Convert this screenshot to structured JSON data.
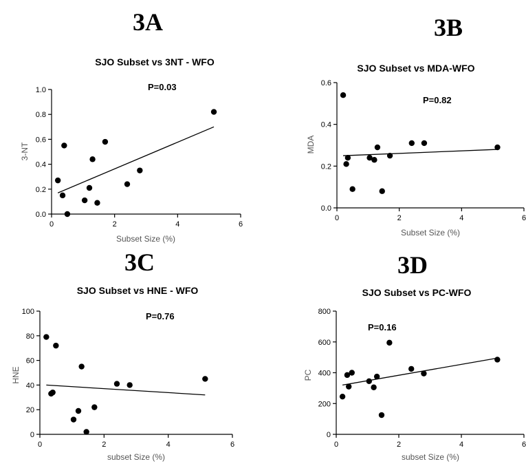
{
  "chart_data": [
    {
      "type": "scatter",
      "panel": "3A",
      "title": "SJO Subset vs 3NT - WFO",
      "annotation": "P=0.03",
      "xlabel": "Subset Size (%)",
      "ylabel": "3-NT",
      "xlim": [
        0,
        6
      ],
      "ylim": [
        0,
        1.0
      ],
      "xticks": [
        "0",
        "2",
        "4",
        "6"
      ],
      "yticks": [
        "0.0",
        "0.2",
        "0.4",
        "0.6",
        "0.8",
        "1.0"
      ],
      "points": [
        [
          0.2,
          0.27
        ],
        [
          0.35,
          0.15
        ],
        [
          0.4,
          0.55
        ],
        [
          0.5,
          0.0
        ],
        [
          1.05,
          0.11
        ],
        [
          1.2,
          0.21
        ],
        [
          1.3,
          0.44
        ],
        [
          1.45,
          0.09
        ],
        [
          1.7,
          0.58
        ],
        [
          2.4,
          0.24
        ],
        [
          2.8,
          0.35
        ],
        [
          5.15,
          0.82
        ]
      ],
      "fit_line": [
        [
          0.2,
          0.17
        ],
        [
          5.15,
          0.7
        ]
      ]
    },
    {
      "type": "scatter",
      "panel": "3B",
      "title": "SJO Subset vs MDA-WFO",
      "annotation": "P=0.82",
      "xlabel": "Subset Size (%)",
      "ylabel": "MDA",
      "xlim": [
        0,
        6
      ],
      "ylim": [
        0,
        0.6
      ],
      "xticks": [
        "0",
        "2",
        "4",
        "6"
      ],
      "yticks": [
        "0.0",
        "0.2",
        "0.4",
        "0.6"
      ],
      "points": [
        [
          0.2,
          0.54
        ],
        [
          0.3,
          0.21
        ],
        [
          0.35,
          0.24
        ],
        [
          0.5,
          0.09
        ],
        [
          1.05,
          0.24
        ],
        [
          1.2,
          0.23
        ],
        [
          1.3,
          0.29
        ],
        [
          1.45,
          0.08
        ],
        [
          1.7,
          0.25
        ],
        [
          2.4,
          0.31
        ],
        [
          2.8,
          0.31
        ],
        [
          5.15,
          0.29
        ]
      ],
      "fit_line": [
        [
          0.2,
          0.25
        ],
        [
          5.15,
          0.28
        ]
      ]
    },
    {
      "type": "scatter",
      "panel": "3C",
      "title": "SJO Subset vs HNE - WFO",
      "annotation": "P=0.76",
      "xlabel": "subset Size (%)",
      "ylabel": "HNE",
      "xlim": [
        0,
        6
      ],
      "ylim": [
        0,
        100
      ],
      "xticks": [
        "0",
        "2",
        "4",
        "6"
      ],
      "yticks": [
        "0",
        "20",
        "40",
        "60",
        "80",
        "100"
      ],
      "points": [
        [
          0.2,
          79
        ],
        [
          0.35,
          33
        ],
        [
          0.4,
          34
        ],
        [
          0.5,
          72
        ],
        [
          1.05,
          12
        ],
        [
          1.2,
          19
        ],
        [
          1.3,
          55
        ],
        [
          1.45,
          2
        ],
        [
          1.7,
          22
        ],
        [
          2.4,
          41
        ],
        [
          2.8,
          40
        ],
        [
          5.15,
          45
        ]
      ],
      "fit_line": [
        [
          0.2,
          40
        ],
        [
          5.15,
          32
        ]
      ]
    },
    {
      "type": "scatter",
      "panel": "3D",
      "title": "SJO Subset vs PC-WFO",
      "annotation": "P=0.16",
      "xlabel": "subset Size (%)",
      "ylabel": "PC",
      "xlim": [
        0,
        6
      ],
      "ylim": [
        0,
        800
      ],
      "xticks": [
        "0",
        "2",
        "4",
        "6"
      ],
      "yticks": [
        "0",
        "200",
        "400",
        "600",
        "800"
      ],
      "points": [
        [
          0.2,
          245
        ],
        [
          0.35,
          385
        ],
        [
          0.4,
          310
        ],
        [
          0.5,
          400
        ],
        [
          1.05,
          345
        ],
        [
          1.2,
          305
        ],
        [
          1.3,
          375
        ],
        [
          1.45,
          125
        ],
        [
          1.7,
          595
        ],
        [
          2.4,
          425
        ],
        [
          2.8,
          395
        ],
        [
          5.15,
          485
        ]
      ],
      "fit_line": [
        [
          0.2,
          320
        ],
        [
          5.15,
          495
        ]
      ]
    }
  ]
}
